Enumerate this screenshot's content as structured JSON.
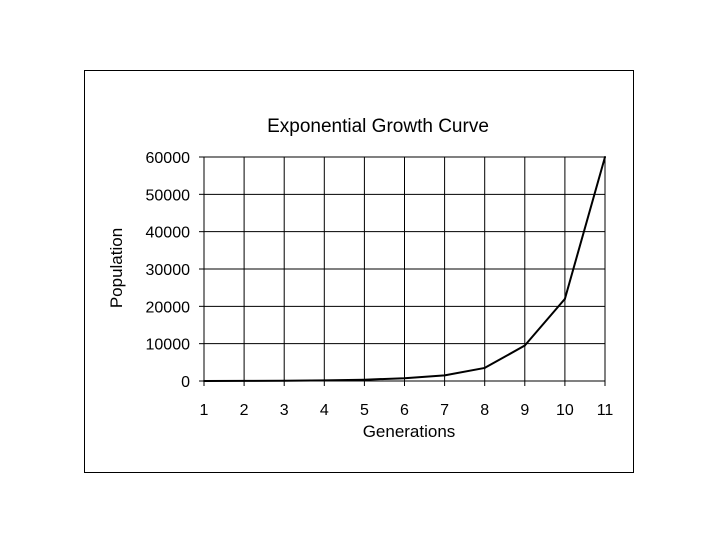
{
  "chart_data": {
    "type": "line",
    "title": "Exponential Growth Curve",
    "xlabel": "Generations",
    "ylabel": "Population",
    "x": [
      1,
      2,
      3,
      4,
      5,
      6,
      7,
      8,
      9,
      10,
      11
    ],
    "series": [
      {
        "values": [
          0,
          20,
          80,
          180,
          350,
          750,
          1500,
          3500,
          9500,
          22000,
          60000
        ]
      }
    ],
    "xlim": [
      1,
      11
    ],
    "ylim": [
      0,
      60000
    ],
    "xticks": [
      "1",
      "2",
      "3",
      "4",
      "5",
      "6",
      "7",
      "8",
      "9",
      "10",
      "11"
    ],
    "yticks": [
      "0",
      "10000",
      "20000",
      "30000",
      "40000",
      "50000",
      "60000"
    ],
    "grid": true,
    "legend": "none",
    "line_color": "#000000"
  }
}
